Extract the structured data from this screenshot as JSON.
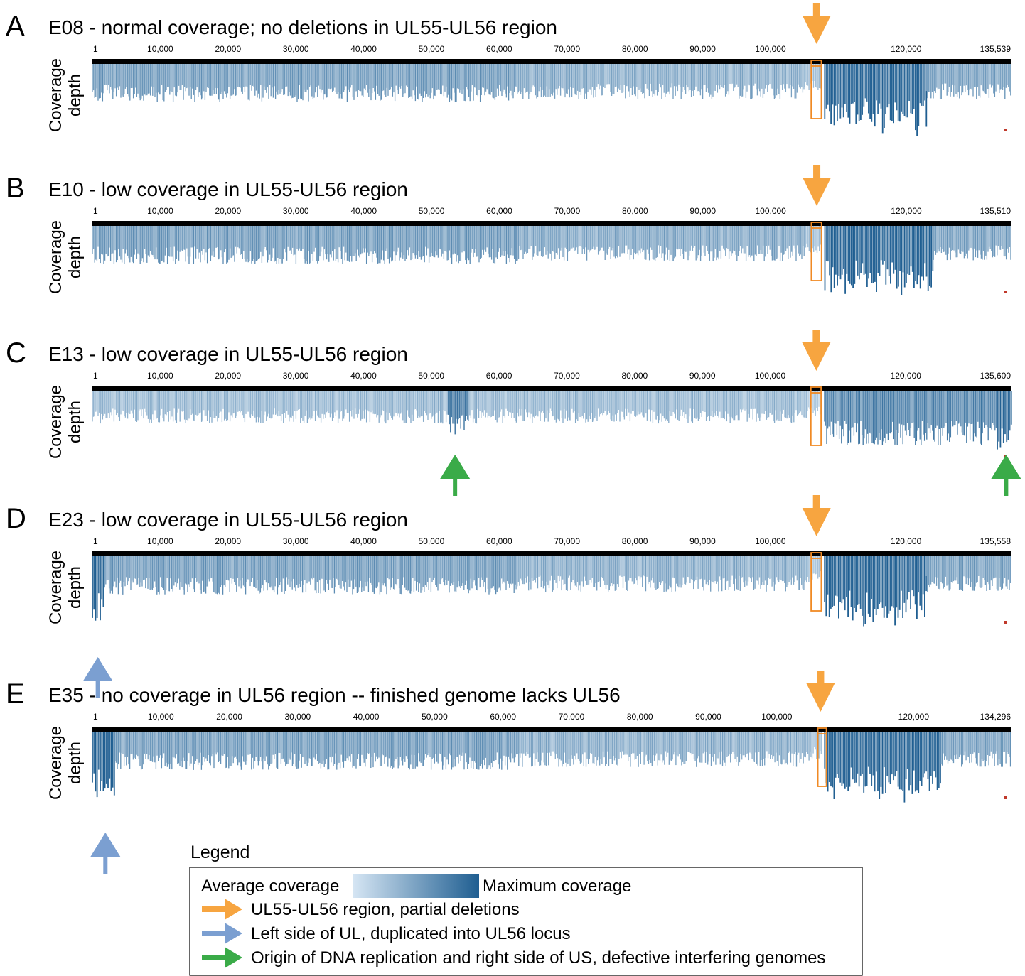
{
  "chart_data": [
    {
      "type": "area",
      "panel": "A",
      "title": "E08 - normal coverage; no deletions in UL55-UL56 region",
      "ylabel": [
        "Coverage",
        "depth"
      ],
      "genome_length": 135539,
      "ticks": [
        "1",
        "10,000",
        "20,000",
        "30,000",
        "40,000",
        "50,000",
        "60,000",
        "70,000",
        "80,000",
        "90,000",
        "100,000",
        "120,000",
        "135,539"
      ],
      "tick_positions": [
        1,
        10000,
        20000,
        30000,
        40000,
        50000,
        60000,
        70000,
        80000,
        90000,
        100000,
        120000,
        135539
      ],
      "highlight_region": [
        106000,
        107500
      ],
      "coverage_profile": [
        {
          "start": 1,
          "end": 62500,
          "depth": 0.5,
          "intensity": 0.55
        },
        {
          "start": 62500,
          "end": 105000,
          "depth": 0.45,
          "intensity": 0.4
        },
        {
          "start": 105000,
          "end": 107500,
          "depth": 0.3,
          "intensity": 0.2
        },
        {
          "start": 108000,
          "end": 123000,
          "depth": 0.95,
          "intensity": 0.95
        },
        {
          "start": 123000,
          "end": 135539,
          "depth": 0.45,
          "intensity": 0.5
        }
      ],
      "arrows": [
        {
          "color": "orange",
          "position": 106800,
          "direction": "down"
        }
      ]
    },
    {
      "type": "area",
      "panel": "B",
      "title": "E10 - low coverage in UL55-UL56 region",
      "ylabel": [
        "Coverage",
        "depth"
      ],
      "genome_length": 135510,
      "ticks": [
        "1",
        "10,000",
        "20,000",
        "30,000",
        "40,000",
        "50,000",
        "60,000",
        "70,000",
        "80,000",
        "90,000",
        "100,000",
        "120,000",
        "135,510"
      ],
      "tick_positions": [
        1,
        10000,
        20000,
        30000,
        40000,
        50000,
        60000,
        70000,
        80000,
        90000,
        100000,
        120000,
        135510
      ],
      "highlight_region": [
        106000,
        107500
      ],
      "coverage_profile": [
        {
          "start": 1,
          "end": 62500,
          "depth": 0.5,
          "intensity": 0.55
        },
        {
          "start": 62500,
          "end": 105000,
          "depth": 0.45,
          "intensity": 0.45
        },
        {
          "start": 105000,
          "end": 107500,
          "depth": 0.3,
          "intensity": 0.2
        },
        {
          "start": 108000,
          "end": 124000,
          "depth": 0.95,
          "intensity": 0.95
        },
        {
          "start": 124000,
          "end": 135510,
          "depth": 0.45,
          "intensity": 0.5
        }
      ],
      "arrows": [
        {
          "color": "orange",
          "position": 106800,
          "direction": "down"
        }
      ]
    },
    {
      "type": "area",
      "panel": "C",
      "title": "E13 - low coverage in UL55-UL56 region",
      "ylabel": [
        "Coverage",
        "depth"
      ],
      "genome_length": 135600,
      "ticks": [
        "1",
        "10,000",
        "20,000",
        "30,000",
        "40,000",
        "50,000",
        "60,000",
        "70,000",
        "80,000",
        "90,000",
        "100,000",
        "120,000",
        "135,600"
      ],
      "tick_positions": [
        1,
        10000,
        20000,
        30000,
        40000,
        50000,
        60000,
        70000,
        80000,
        90000,
        100000,
        120000,
        135600
      ],
      "highlight_region": [
        106000,
        107500
      ],
      "coverage_profile": [
        {
          "start": 1,
          "end": 52500,
          "depth": 0.4,
          "intensity": 0.3
        },
        {
          "start": 52500,
          "end": 55500,
          "depth": 0.6,
          "intensity": 0.9
        },
        {
          "start": 55500,
          "end": 105000,
          "depth": 0.4,
          "intensity": 0.3
        },
        {
          "start": 105000,
          "end": 107500,
          "depth": 0.3,
          "intensity": 0.15
        },
        {
          "start": 108000,
          "end": 133500,
          "depth": 0.8,
          "intensity": 0.75
        },
        {
          "start": 133500,
          "end": 135600,
          "depth": 0.9,
          "intensity": 0.95
        }
      ],
      "arrows": [
        {
          "color": "orange",
          "position": 106800,
          "direction": "down"
        },
        {
          "color": "green",
          "position": 53500,
          "direction": "up"
        },
        {
          "color": "green",
          "position": 134800,
          "direction": "up"
        }
      ]
    },
    {
      "type": "area",
      "panel": "D",
      "title": "E23 - low coverage in UL55-UL56 region",
      "ylabel": [
        "Coverage",
        "depth"
      ],
      "genome_length": 135558,
      "ticks": [
        "1",
        "10,000",
        "20,000",
        "30,000",
        "40,000",
        "50,000",
        "60,000",
        "70,000",
        "80,000",
        "90,000",
        "100,000",
        "120,000",
        "135,558"
      ],
      "tick_positions": [
        1,
        10000,
        20000,
        30000,
        40000,
        50000,
        60000,
        70000,
        80000,
        90000,
        100000,
        120000,
        135558
      ],
      "highlight_region": [
        106000,
        107500
      ],
      "coverage_profile": [
        {
          "start": 1,
          "end": 1800,
          "depth": 1.0,
          "intensity": 1.0
        },
        {
          "start": 1800,
          "end": 62500,
          "depth": 0.5,
          "intensity": 0.55
        },
        {
          "start": 62500,
          "end": 105000,
          "depth": 0.45,
          "intensity": 0.4
        },
        {
          "start": 105000,
          "end": 107500,
          "depth": 0.3,
          "intensity": 0.2
        },
        {
          "start": 108000,
          "end": 123000,
          "depth": 0.95,
          "intensity": 0.95
        },
        {
          "start": 123000,
          "end": 135558,
          "depth": 0.45,
          "intensity": 0.5
        }
      ],
      "arrows": [
        {
          "color": "orange",
          "position": 106800,
          "direction": "down"
        },
        {
          "color": "blue",
          "position": 800,
          "direction": "up"
        }
      ]
    },
    {
      "type": "area",
      "panel": "E",
      "title": "E35 - no coverage in UL56 region -- finished genome lacks UL56",
      "ylabel": [
        "Coverage",
        "depth"
      ],
      "genome_length": 134296,
      "ticks": [
        "1",
        "10,000",
        "20,000",
        "30,000",
        "40,000",
        "50,000",
        "60,000",
        "70,000",
        "80,000",
        "90,000",
        "100,000",
        "120,000",
        "134,296"
      ],
      "tick_positions": [
        1,
        10000,
        20000,
        30000,
        40000,
        50000,
        60000,
        70000,
        80000,
        90000,
        100000,
        120000,
        134296
      ],
      "highlight_region": [
        106000,
        106800
      ],
      "coverage_profile": [
        {
          "start": 1,
          "end": 3300,
          "depth": 1.0,
          "intensity": 1.0
        },
        {
          "start": 3300,
          "end": 62500,
          "depth": 0.5,
          "intensity": 0.55
        },
        {
          "start": 62500,
          "end": 105000,
          "depth": 0.45,
          "intensity": 0.4
        },
        {
          "start": 105000,
          "end": 106500,
          "depth": 0.3,
          "intensity": 0.2
        },
        {
          "start": 107000,
          "end": 124000,
          "depth": 0.95,
          "intensity": 0.95
        },
        {
          "start": 124000,
          "end": 134296,
          "depth": 0.45,
          "intensity": 0.5
        }
      ],
      "arrows": [
        {
          "color": "orange",
          "position": 106400,
          "direction": "down"
        },
        {
          "color": "blue",
          "position": 1900,
          "direction": "up"
        }
      ]
    }
  ],
  "legend": {
    "title": "Legend",
    "gradient_min_label": "Average coverage",
    "gradient_max_label": "Maximum coverage",
    "items": [
      {
        "color": "orange",
        "label": "UL55-UL56 region, partial deletions"
      },
      {
        "color": "blue",
        "label": "Left side of UL, duplicated into UL56 locus"
      },
      {
        "color": "green",
        "label": "Origin of DNA replication and right side of US, defective interfering genomes"
      }
    ]
  },
  "colors": {
    "orange": "#f7a540",
    "blue": "#7b9fd1",
    "green": "#3aab48",
    "gradient_light": "#d6e6f4",
    "gradient_dark": "#1f5e91",
    "genome_bar": "#000000",
    "highlight_box": "#f08a24",
    "marker": "#c0392b"
  }
}
